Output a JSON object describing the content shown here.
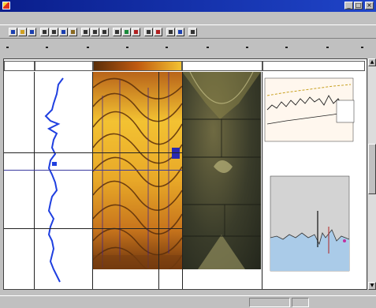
{
  "window": {
    "title": "",
    "controls": [
      "_",
      "□",
      "×"
    ]
  },
  "menu": {
    "items": [
      "",
      "",
      "",
      "",
      "",
      "",
      ""
    ]
  },
  "toolbar": {
    "buttons": [
      {
        "icon": "new-icon",
        "color": "#1a3fb0"
      },
      {
        "icon": "open-icon",
        "color": "#d0a020"
      },
      {
        "icon": "save-icon",
        "color": "#1a3fb0"
      },
      {
        "icon": "print-icon",
        "color": "#333333"
      },
      {
        "icon": "cut-icon",
        "color": "#333333"
      },
      {
        "icon": "copy-icon",
        "color": "#1a3fb0"
      },
      {
        "icon": "paste-icon",
        "color": "#8a6a20"
      },
      {
        "icon": "zoom-in-icon",
        "color": "#333333"
      },
      {
        "icon": "zoom-out-icon",
        "color": "#333333"
      },
      {
        "icon": "pan-icon",
        "color": "#333333"
      },
      {
        "icon": "select-icon",
        "color": "#333333"
      },
      {
        "icon": "track-add-icon",
        "color": "#1a8a3a"
      },
      {
        "icon": "track-remove-icon",
        "color": "#b02020"
      },
      {
        "icon": "scale-icon",
        "color": "#333333"
      },
      {
        "icon": "histogram-icon",
        "color": "#b02020"
      },
      {
        "icon": "crossplot-icon",
        "color": "#333333"
      },
      {
        "icon": "image-icon",
        "color": "#1a3fb0"
      },
      {
        "icon": "help-icon",
        "color": "#333333"
      }
    ]
  },
  "tracks": {
    "headers": [
      "",
      "",
      "",
      "",
      ""
    ],
    "depth_labels": [
      "",
      "",
      "",
      "",
      ""
    ]
  },
  "status": {
    "left_text": "",
    "pane1": "",
    "pane2": ""
  },
  "colors": {
    "log_curve": "#1f3fe0",
    "image_dark": "#5a2e0a",
    "image_light": "#f3c232",
    "panel_fill": "#aacbe8"
  }
}
